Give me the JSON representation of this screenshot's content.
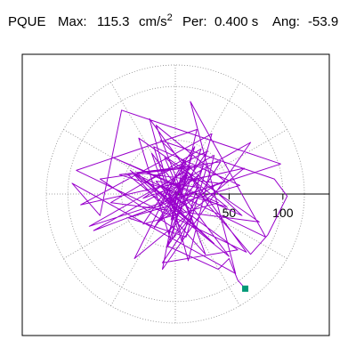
{
  "header": {
    "station": "PQUE",
    "max_label": "Max:",
    "max_value": "115.3",
    "max_unit": "cm/s",
    "max_unit_exp": "2",
    "period_label": "Per:",
    "period_value": "0.400 s",
    "angle_label": "Ang:",
    "angle_value": "-53.9"
  },
  "chart_data": {
    "type": "line",
    "title": "",
    "xlabel": "",
    "ylabel": "",
    "polar_grid": {
      "rings": [
        50,
        100
      ],
      "spokes_deg": [
        0,
        30,
        60,
        90,
        120,
        150,
        180,
        210,
        240,
        270,
        300,
        330
      ],
      "grid_style": "dotted",
      "range": 120
    },
    "axis_ticks": [
      {
        "value": 50,
        "label": "50"
      },
      {
        "value": 100,
        "label": "100"
      }
    ],
    "end_marker": {
      "x": 65,
      "y": -88,
      "color": "#009977"
    },
    "series": [
      {
        "color": "#9900cc",
        "x": [
          0,
          6,
          -4,
          10,
          -8,
          14,
          -12,
          8,
          -18,
          22,
          -6,
          12,
          -30,
          26,
          -16,
          40,
          -36,
          18,
          -10,
          48,
          -52,
          30,
          10,
          -44,
          60,
          -20,
          5,
          -70,
          42,
          -8,
          24,
          -60,
          78,
          -34,
          -4,
          20,
          -92,
          66,
          -24,
          12,
          36,
          -80,
          98,
          -50,
          -70,
          -96,
          56,
          14,
          84,
          -40,
          28,
          -18,
          46,
          -76,
          70,
          -12,
          8,
          -38,
          64,
          -88,
          34,
          6,
          -22,
          50,
          -44,
          26,
          -6,
          18,
          -30,
          40,
          -58,
          62,
          -14,
          92,
          104,
          86,
          70,
          48,
          30,
          12,
          -4,
          10,
          -16,
          22,
          -8,
          14,
          -20,
          30,
          -26,
          36,
          -42,
          58,
          -12,
          4,
          16,
          -8,
          40,
          50,
          58,
          65
        ],
        "y": [
          0,
          4,
          -6,
          10,
          2,
          -14,
          8,
          -18,
          12,
          6,
          -20,
          24,
          -4,
          16,
          -26,
          10,
          20,
          -30,
          34,
          -12,
          18,
          28,
          -40,
          -22,
          8,
          44,
          -36,
          14,
          30,
          -50,
          42,
          -8,
          -26,
          52,
          -44,
          60,
          22,
          -54,
          70,
          -62,
          36,
          -30,
          28,
          78,
          -20,
          10,
          -74,
          86,
          -40,
          20,
          -56,
          64,
          12,
          -34,
          48,
          -70,
          32,
          -60,
          24,
          -10,
          56,
          -44,
          38,
          -58,
          18,
          26,
          -36,
          44,
          -28,
          -8,
          34,
          -20,
          50,
          14,
          -2,
          -38,
          -56,
          -30,
          -10,
          20,
          -24,
          30,
          -12,
          18,
          -6,
          26,
          -32,
          40,
          12,
          -46,
          22,
          -52,
          -64,
          -40,
          -20,
          -48,
          -70,
          -60,
          -80,
          -88
        ]
      }
    ]
  }
}
